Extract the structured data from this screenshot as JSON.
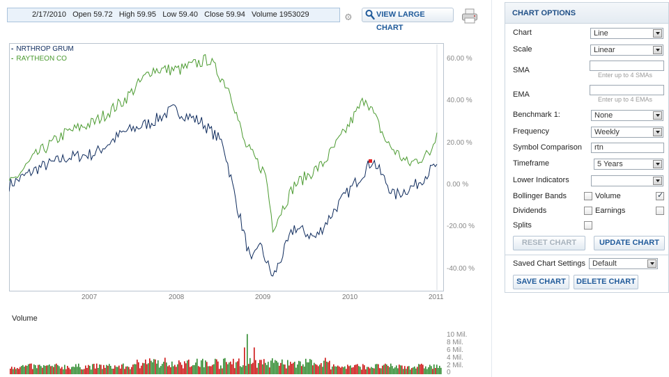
{
  "quote_bar": {
    "date": "2/17/2010",
    "open_label": "Open",
    "open": "59.72",
    "high_label": "High",
    "high": "59.95",
    "low_label": "Low",
    "low": "59.40",
    "close_label": "Close",
    "close": "59.94",
    "volume_label": "Volume",
    "volume": "1953029"
  },
  "toolbar": {
    "large_chart_label": "VIEW LARGE CHART",
    "settings_icon": "gear-icon",
    "print_icon": "printer-icon"
  },
  "chart": {
    "legend": [
      {
        "name": "NRTHROP GRUM",
        "color": "#0d2a5c"
      },
      {
        "name": "RAYTHEON CO",
        "color": "#4a9a2f"
      }
    ],
    "y_ticks": [
      "60.00 %",
      "40.00 %",
      "20.00 %",
      "0.00 %",
      "-20.00 %",
      "-40.00 %"
    ],
    "x_ticks": [
      "2007",
      "2008",
      "2009",
      "2010",
      "2011"
    ],
    "volume_title": "Volume",
    "volume_ticks": [
      "10 Mil.",
      "8 Mil.",
      "6 Mil.",
      "4 Mil.",
      "2 Mil.",
      "0"
    ],
    "up_color": "#2e8a2e",
    "down_color": "#cc1111"
  },
  "chart_data": {
    "type": "line",
    "x_range": [
      "2006-02",
      "2011-02"
    ],
    "ylim": [
      -45,
      65
    ],
    "y_unit": "%",
    "series": [
      {
        "name": "NRTHROP GRUM",
        "points": [
          [
            "2006-02",
            0
          ],
          [
            "2006-06",
            8
          ],
          [
            "2006-10",
            13
          ],
          [
            "2007-02",
            15
          ],
          [
            "2007-06",
            25
          ],
          [
            "2007-10",
            30
          ],
          [
            "2008-01",
            36
          ],
          [
            "2008-05",
            30
          ],
          [
            "2008-08",
            20
          ],
          [
            "2008-10",
            -10
          ],
          [
            "2008-12",
            -38
          ],
          [
            "2009-01",
            -27
          ],
          [
            "2009-03",
            -44
          ],
          [
            "2009-06",
            -20
          ],
          [
            "2009-09",
            -25
          ],
          [
            "2009-12",
            -10
          ],
          [
            "2010-03",
            3
          ],
          [
            "2010-05",
            12
          ],
          [
            "2010-08",
            -5
          ],
          [
            "2010-11",
            0
          ],
          [
            "2011-02",
            10
          ]
        ]
      },
      {
        "name": "RAYTHEON CO",
        "points": [
          [
            "2006-02",
            0
          ],
          [
            "2006-06",
            15
          ],
          [
            "2006-10",
            25
          ],
          [
            "2007-02",
            30
          ],
          [
            "2007-06",
            40
          ],
          [
            "2007-10",
            55
          ],
          [
            "2008-02",
            55
          ],
          [
            "2008-06",
            60
          ],
          [
            "2008-09",
            45
          ],
          [
            "2008-11",
            20
          ],
          [
            "2009-02",
            5
          ],
          [
            "2009-03",
            -20
          ],
          [
            "2009-06",
            0
          ],
          [
            "2009-10",
            10
          ],
          [
            "2010-01",
            25
          ],
          [
            "2010-04",
            42
          ],
          [
            "2010-07",
            20
          ],
          [
            "2010-10",
            10
          ],
          [
            "2011-01",
            15
          ],
          [
            "2011-02",
            25
          ]
        ]
      }
    ],
    "volume_ylim": [
      0,
      10
    ],
    "volume_unit": "Mil."
  },
  "sidebar": {
    "title": "CHART OPTIONS",
    "chart_label": "Chart",
    "chart_value": "Line",
    "scale_label": "Scale",
    "scale_value": "Linear",
    "sma_label": "SMA",
    "sma_value": "",
    "sma_hint": "Enter up to 4 SMAs",
    "ema_label": "EMA",
    "ema_value": "",
    "ema_hint": "Enter up to 4 EMAs",
    "benchmark_label": "Benchmark 1:",
    "benchmark_value": "None",
    "frequency_label": "Frequency",
    "frequency_value": "Weekly",
    "symbol_label": "Symbol Comparison",
    "symbol_value": "rtn",
    "timeframe_label": "Timeframe",
    "timeframe_value": "5 Years",
    "lower_label": "Lower Indicators",
    "lower_value": "",
    "bollinger_label": "Bollinger Bands",
    "volume_label": "Volume",
    "dividends_label": "Dividends",
    "earnings_label": "Earnings",
    "splits_label": "Splits",
    "reset_label": "RESET CHART",
    "update_label": "UPDATE CHART",
    "saved_label": "Saved Chart Settings",
    "saved_value": "Default",
    "save_label": "SAVE CHART",
    "delete_label": "DELETE CHART"
  }
}
